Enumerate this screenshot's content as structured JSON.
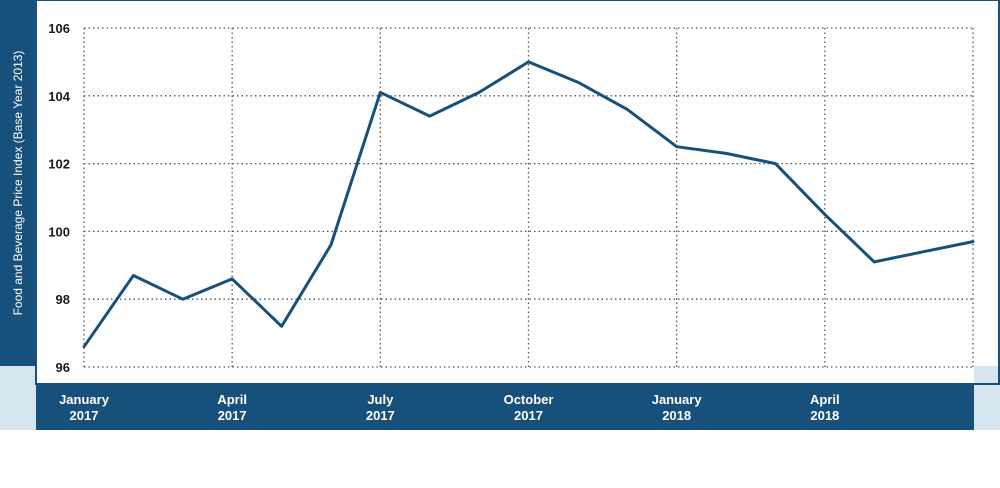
{
  "chart_data": {
    "type": "line",
    "title": "",
    "xlabel": "",
    "ylabel": "Food and Beverage Price Index (Base Year 2013)",
    "x": [
      "Jan 2017",
      "Feb 2017",
      "Mar 2017",
      "Apr 2017",
      "May 2017",
      "Jun 2017",
      "Jul 2017",
      "Aug 2017",
      "Sep 2017",
      "Oct 2017",
      "Nov 2017",
      "Dec 2017",
      "Jan 2018",
      "Feb 2018",
      "Mar 2018",
      "Apr 2018",
      "May 2018",
      "Jun 2018",
      "Jul 2018"
    ],
    "series": [
      {
        "values": [
          96.6,
          98.7,
          98.0,
          98.6,
          97.2,
          99.6,
          104.1,
          103.4,
          104.1,
          105.0,
          104.4,
          103.6,
          102.5,
          102.3,
          102.0,
          100.5,
          99.1,
          99.4,
          99.7
        ]
      }
    ],
    "ylim": [
      96,
      106
    ],
    "yticks": [
      96,
      98,
      100,
      102,
      104,
      106
    ],
    "xtick_labels": [
      {
        "line1": "January",
        "line2": "2017",
        "index": 0
      },
      {
        "line1": "April",
        "line2": "2017",
        "index": 3
      },
      {
        "line1": "July",
        "line2": "2017",
        "index": 6
      },
      {
        "line1": "October",
        "line2": "2017",
        "index": 9
      },
      {
        "line1": "January",
        "line2": "2018",
        "index": 12
      },
      {
        "line1": "April",
        "line2": "2018",
        "index": 15
      }
    ],
    "grid": true,
    "colors": {
      "line": "#17507a",
      "band": "#17507a",
      "corner": "#d6e6f0",
      "frame": "#17507a",
      "grid": "#555555"
    }
  }
}
